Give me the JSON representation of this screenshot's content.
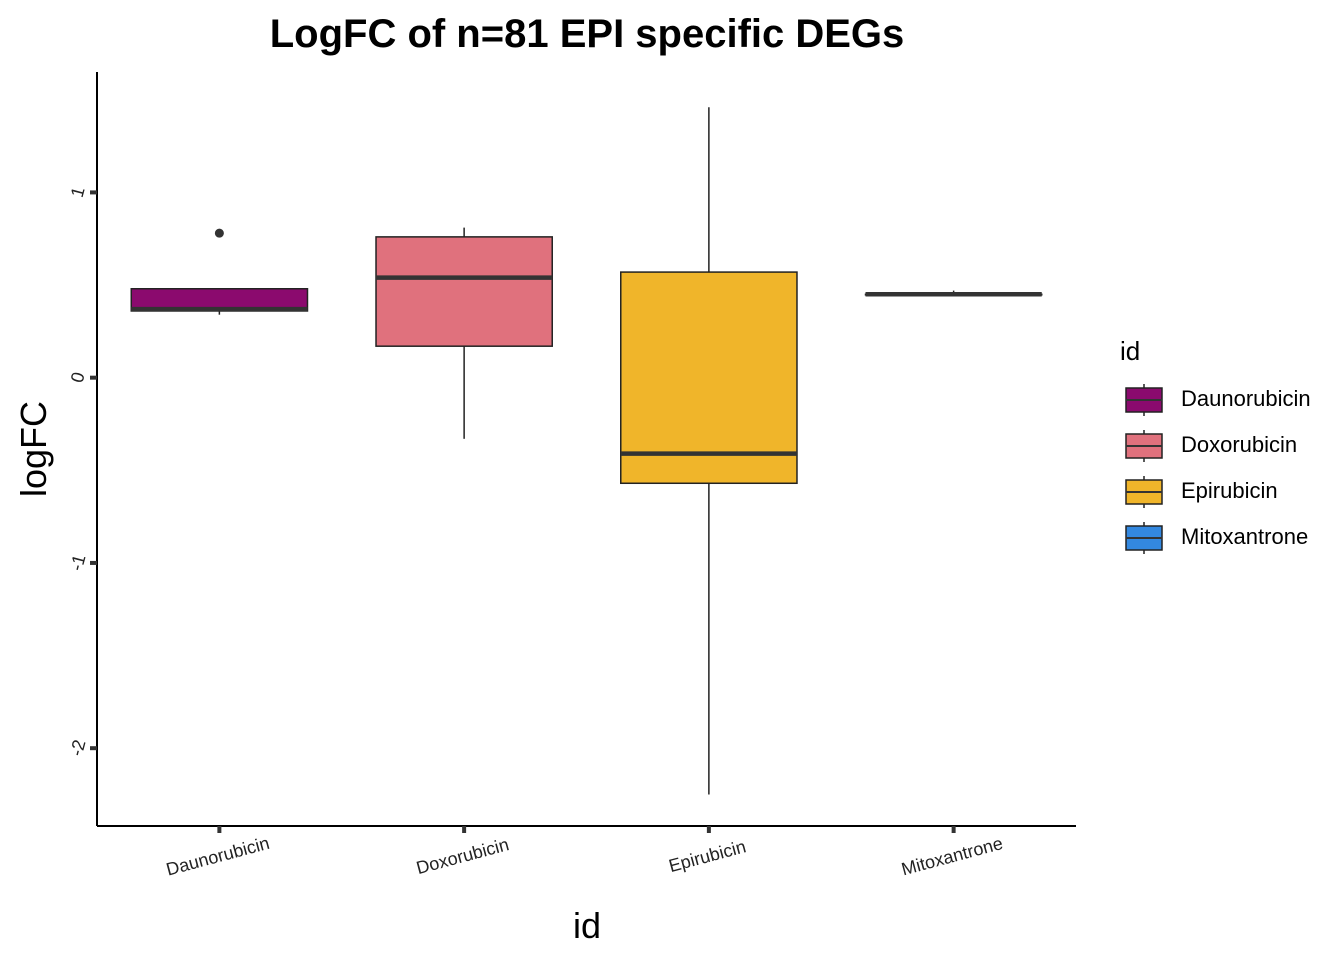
{
  "chart_data": {
    "type": "box",
    "title": "LogFC of n=81 EPI specific DEGs",
    "xlabel": "id",
    "ylabel": "logFC",
    "ylim": [
      -2.42,
      1.65
    ],
    "yticks": [
      {
        "value": 1,
        "label": "1"
      },
      {
        "value": 0,
        "label": "0"
      },
      {
        "value": -1,
        "label": "-1"
      },
      {
        "value": -2,
        "label": "-2"
      }
    ],
    "categories": [
      "Daunorubicin",
      "Doxorubicin",
      "Epirubicin",
      "Mitoxantrone"
    ],
    "boxes": [
      {
        "name": "Daunorubicin",
        "color": "#8B0A6E",
        "whisker_low": 0.34,
        "q1": 0.36,
        "median": 0.37,
        "q3": 0.48,
        "whisker_high": 0.48,
        "outliers": [
          0.78
        ]
      },
      {
        "name": "Doxorubicin",
        "color": "#E0717D",
        "whisker_low": -0.33,
        "q1": 0.17,
        "median": 0.54,
        "q3": 0.76,
        "whisker_high": 0.81,
        "outliers": []
      },
      {
        "name": "Epirubicin",
        "color": "#F0B52A",
        "whisker_low": -2.25,
        "q1": -0.57,
        "median": -0.41,
        "q3": 0.57,
        "whisker_high": 1.46,
        "outliers": []
      },
      {
        "name": "Mitoxantrone",
        "color": "#3388E0",
        "whisker_low": 0.45,
        "q1": 0.45,
        "median": 0.45,
        "q3": 0.45,
        "whisker_high": 0.47,
        "outliers": []
      }
    ],
    "legend": {
      "title": "id",
      "placement": "right",
      "entries": [
        "Daunorubicin",
        "Doxorubicin",
        "Epirubicin",
        "Mitoxantrone"
      ]
    },
    "grid": false
  }
}
